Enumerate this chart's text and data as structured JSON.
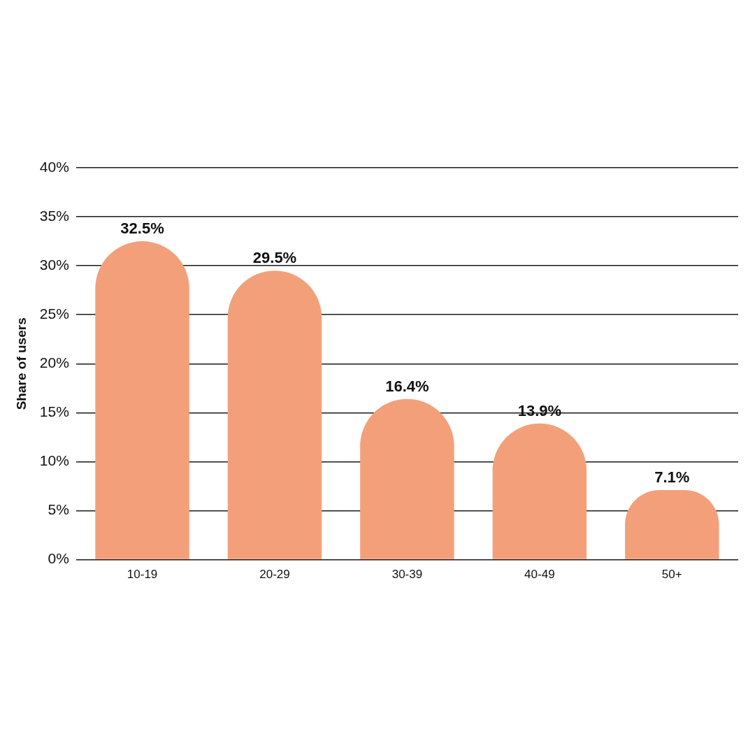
{
  "chart_data": {
    "type": "bar",
    "ylabel": "Share of users",
    "categories": [
      "10-19",
      "20-29",
      "30-39",
      "40-49",
      "50+"
    ],
    "values": [
      32.5,
      29.5,
      16.4,
      13.9,
      7.1
    ],
    "value_labels": [
      "32.5%",
      "29.5%",
      "16.4%",
      "13.9%",
      "7.1%"
    ],
    "color": "#f3a07a",
    "ylim": [
      0,
      40
    ],
    "yticks": [
      {
        "value": 0,
        "label": "0%"
      },
      {
        "value": 5,
        "label": "5%"
      },
      {
        "value": 10,
        "label": "10%"
      },
      {
        "value": 15,
        "label": "15%"
      },
      {
        "value": 20,
        "label": "20%"
      },
      {
        "value": 25,
        "label": "25%"
      },
      {
        "value": 30,
        "label": "30%"
      },
      {
        "value": 35,
        "label": "35%"
      },
      {
        "value": 40,
        "label": "40%"
      }
    ],
    "grid": "y",
    "legend": false
  }
}
